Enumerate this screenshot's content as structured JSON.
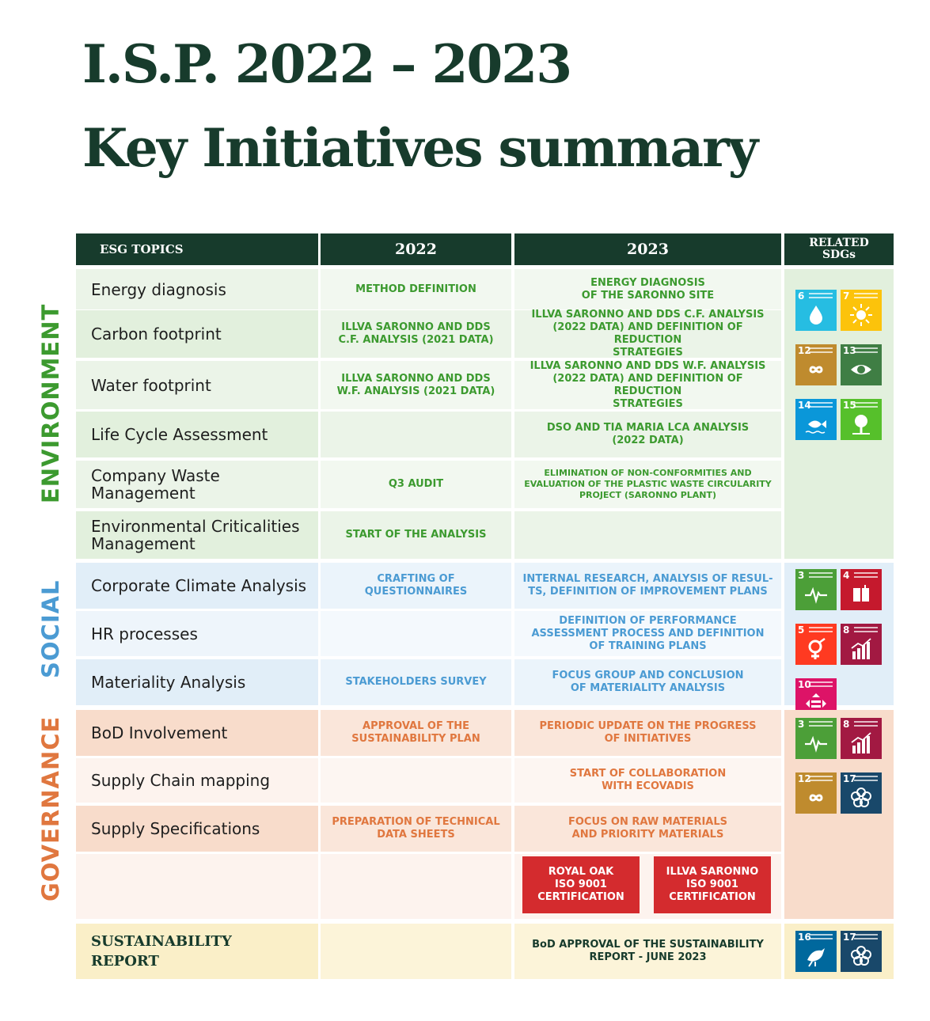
{
  "title": {
    "line1": "I.S.P. 2022 – 2023",
    "line2": "Key Initiatives summary"
  },
  "header": {
    "topics": "ESG TOPICS",
    "y2022": "2022",
    "y2023": "2023",
    "sdgs_line1": "RELATED",
    "sdgs_line2": "SDGs"
  },
  "categories": {
    "environment": "ENVIRONMENT",
    "social": "SOCIAL",
    "governance": "GOVERNANCE"
  },
  "colors": {
    "dark_green": "#173b2c",
    "environment": "#3c9a2f",
    "social": "#4b9bd3",
    "governance": "#e0773f",
    "certification_red": "#d42b2e"
  },
  "rows": [
    {
      "topic": "Energy diagnosis",
      "y2022": "METHOD DEFINITION",
      "y2023": "ENERGY DIAGNOSIS\nOF THE SARONNO SITE"
    },
    {
      "topic": "Carbon footprint",
      "y2022": "ILLVA SARONNO AND DDS\nC.F. ANALYSIS (2021 DATA)",
      "y2023": "ILLVA SARONNO AND DDS C.F. ANALYSIS\n(2022 DATA) AND DEFINITION OF REDUCTION\nSTRATEGIES"
    },
    {
      "topic": "Water footprint",
      "y2022": "ILLVA SARONNO AND DDS\nW.F. ANALYSIS (2021 DATA)",
      "y2023": "ILLVA SARONNO AND DDS W.F. ANALYSIS\n(2022 DATA) AND DEFINITION OF REDUCTION\nSTRATEGIES"
    },
    {
      "topic": "Life Cycle Assessment",
      "y2022": "",
      "y2023": "DSO AND TIA MARIA LCA ANALYSIS\n(2022 DATA)"
    },
    {
      "topic": "Company Waste\nManagement",
      "y2022": "Q3 AUDIT",
      "y2023": "ELIMINATION OF NON-CONFORMITIES AND\nEVALUATION OF THE PLASTIC WASTE CIRCULARITY\nPROJECT (SARONNO PLANT)"
    },
    {
      "topic": "Environmental Criticalities\nManagement",
      "y2022": "START OF THE ANALYSIS",
      "y2023": ""
    },
    {
      "topic": "Corporate Climate Analysis",
      "y2022": "CRAFTING OF QUESTIONNAIRES",
      "y2023": "INTERNAL RESEARCH, ANALYSIS OF RESUL-\nTS, DEFINITION OF IMPROVEMENT PLANS"
    },
    {
      "topic": "HR processes",
      "y2022": "",
      "y2023": "DEFINITION OF PERFORMANCE\nASSESSMENT PROCESS AND DEFINITION\nOF TRAINING PLANS"
    },
    {
      "topic": "Materiality Analysis",
      "y2022": "STAKEHOLDERS SURVEY",
      "y2023": "FOCUS GROUP AND CONCLUSION\nOF MATERIALITY ANALYSIS"
    },
    {
      "topic": "BoD Involvement",
      "y2022": "APPROVAL OF THE\nSUSTAINABILITY PLAN",
      "y2023": "PERIODIC UPDATE ON THE PROGRESS\nOF INITIATIVES"
    },
    {
      "topic": "Supply Chain mapping",
      "y2022": "",
      "y2023": "START OF COLLABORATION\nWITH ECOVADIS"
    },
    {
      "topic": "Supply Specifications",
      "y2022": "PREPARATION OF TECHNICAL\nDATA SHEETS",
      "y2023": "FOCUS ON RAW MATERIALS\nAND PRIORITY MATERIALS"
    },
    {
      "topic": "SUSTAINABILITY\nREPORT",
      "y2022": "",
      "y2023": "BoD APPROVAL OF THE SUSTAINABILITY\nREPORT - JUNE 2023"
    }
  ],
  "certifications": [
    "ROYAL OAK\nISO 9001\nCERTIFICATION",
    "ILLVA SARONNO\nISO 9001\nCERTIFICATION"
  ],
  "sdgs": {
    "environment": [
      {
        "num": "6",
        "color": "#26bde2",
        "icon": "water-drop-icon"
      },
      {
        "num": "7",
        "color": "#fcc30b",
        "icon": "sun-icon"
      },
      {
        "num": "12",
        "color": "#bf8b2e",
        "icon": "infinity-icon"
      },
      {
        "num": "13",
        "color": "#3f7e44",
        "icon": "eye-icon"
      },
      {
        "num": "14",
        "color": "#0a97d9",
        "icon": "fish-icon"
      },
      {
        "num": "15",
        "color": "#56c02b",
        "icon": "tree-icon"
      }
    ],
    "social": [
      {
        "num": "3",
        "color": "#4c9f38",
        "icon": "heartbeat-icon"
      },
      {
        "num": "4",
        "color": "#c5192d",
        "icon": "book-icon"
      },
      {
        "num": "5",
        "color": "#ff3a21",
        "icon": "gender-icon"
      },
      {
        "num": "8",
        "color": "#a21942",
        "icon": "growth-chart-icon"
      },
      {
        "num": "10",
        "color": "#dd1367",
        "icon": "equality-icon"
      }
    ],
    "governance": [
      {
        "num": "3",
        "color": "#4c9f38",
        "icon": "heartbeat-icon"
      },
      {
        "num": "8",
        "color": "#a21942",
        "icon": "growth-chart-icon"
      },
      {
        "num": "12",
        "color": "#bf8b2e",
        "icon": "infinity-icon"
      },
      {
        "num": "17",
        "color": "#19486a",
        "icon": "flower-icon"
      }
    ],
    "sustainability": [
      {
        "num": "16",
        "color": "#00689d",
        "icon": "dove-icon"
      },
      {
        "num": "17",
        "color": "#19486a",
        "icon": "flower-icon"
      }
    ]
  }
}
